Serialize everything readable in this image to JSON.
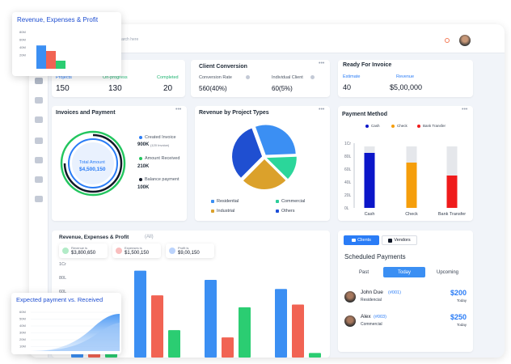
{
  "floating_revenue": {
    "title": "Revenue, Expenses & Profit",
    "ticks": [
      "80M",
      "60M",
      "40M",
      "20M"
    ],
    "bars": [
      {
        "name": "revenue",
        "value": 72,
        "color": "#3b8ff3"
      },
      {
        "name": "expenses",
        "value": 55,
        "color": "#f16353"
      },
      {
        "name": "profit",
        "value": 25,
        "color": "#2bcd72"
      }
    ]
  },
  "floating_expected": {
    "title": "Expected payment vs. Received",
    "ticks": [
      "60M",
      "50M",
      "40M",
      "30M",
      "20M",
      "10M"
    ]
  },
  "topbar": {
    "search_placeholder": "Search here"
  },
  "projects": {
    "items": [
      {
        "label": "Projects",
        "value": "150"
      },
      {
        "label": "On-progress",
        "value": "130"
      },
      {
        "label": "Completed",
        "value": "20"
      }
    ]
  },
  "conversion": {
    "title": "Client Conversion",
    "rate_label": "Conversion Rate",
    "rate_value": "560(40%)",
    "individual_label": "Individual Client",
    "individual_value": "60(5%)"
  },
  "invoice_ready": {
    "title": "Ready For Invoice",
    "estimate_label": "Estimate",
    "estimate_value": "40",
    "revenue_label": "Revenue",
    "revenue_value": "$5,00,000"
  },
  "invoices": {
    "title": "Invoices and Payment",
    "total_label": "Total Amount",
    "total_value": "$4,500,150",
    "created_label": "Created Invoice",
    "created_value": "900K",
    "created_note": "(120 Invoice)",
    "received_label": "Amount Received",
    "received_value": "210K",
    "balance_label": "Balance payment",
    "balance_value": "100K",
    "colors": {
      "created": "#2a7cf6",
      "received": "#22c55e",
      "balance": "#111827"
    }
  },
  "project_types": {
    "title": "Revenue by Project Types",
    "legend": [
      {
        "label": "Residential",
        "color": "#3b8ff3"
      },
      {
        "label": "Commercial",
        "color": "#2bcd9a"
      },
      {
        "label": "Industrial",
        "color": "#dba12b"
      },
      {
        "label": "Others",
        "color": "#1d4ed8"
      }
    ],
    "chart_data": {
      "type": "pie",
      "slices": [
        {
          "label": "Residential",
          "value": 30,
          "color": "#3b8ff3"
        },
        {
          "label": "Commercial",
          "value": 13,
          "color": "#2bd69a"
        },
        {
          "label": "Industrial",
          "value": 25,
          "color": "#dba12b"
        },
        {
          "label": "Others",
          "value": 32,
          "color": "#1f4fd1"
        }
      ]
    }
  },
  "payment_method": {
    "title": "Payment Method",
    "legend": [
      {
        "label": "Cash",
        "color": "#0b16c9"
      },
      {
        "label": "Check",
        "color": "#f59e0b"
      },
      {
        "label": "Bank Transfer",
        "color": "#ef1b1b"
      }
    ],
    "chart_data": {
      "type": "bar",
      "categories": [
        "Cash",
        "Check",
        "Bank Transfer"
      ],
      "values": [
        85,
        70,
        50
      ],
      "ticks": [
        "1Cr",
        "80L",
        "60L",
        "40L",
        "20L",
        "0L"
      ],
      "ylim": [
        0,
        100
      ],
      "bg_value": 95
    }
  },
  "revenue_main": {
    "title": "Revenue, Expenses & Profit",
    "filter": "(All)",
    "summary": [
      {
        "label": "Revenue is",
        "value": "$3,800,650",
        "color": "#22c55e"
      },
      {
        "label": "Expenses is",
        "value": "$1,500,150",
        "color": "#ef4444"
      },
      {
        "label": "Profit is",
        "value": "$9,00,150",
        "color": "#3b82f6"
      }
    ],
    "ticks": [
      "1Cr",
      "80L",
      "60L"
    ],
    "chart_data": {
      "type": "bar",
      "groups": [
        [
          70,
          55,
          20
        ],
        [
          95,
          68,
          30
        ],
        [
          85,
          22,
          55
        ],
        [
          75,
          58,
          5
        ]
      ],
      "colors": [
        "#3b8ff3",
        "#f16353",
        "#2bcd72"
      ],
      "ylim": [
        0,
        100
      ]
    }
  },
  "scheduled": {
    "tab_clients": "Clients",
    "tab_vendors": "Vendors",
    "title": "Scheduled Payments",
    "tabs": [
      "Past",
      "Today",
      "Upcoming"
    ],
    "rows": [
      {
        "name": "John Due",
        "code": "(#001)",
        "type": "Residencial",
        "amount": "$200",
        "when": "Today"
      },
      {
        "name": "Alex",
        "code": "(#003)",
        "type": "Commercial",
        "amount": "$250",
        "when": "Today"
      }
    ]
  }
}
